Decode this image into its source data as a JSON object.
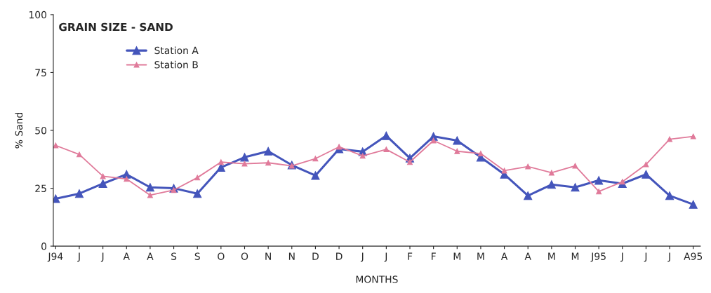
{
  "chart_data": {
    "type": "line",
    "title": "GRAIN SIZE - SAND",
    "xlabel": "MONTHS",
    "ylabel": "% Sand",
    "categories": [
      "J94",
      "J",
      "J",
      "A",
      "A",
      "S",
      "S",
      "O",
      "O",
      "N",
      "N",
      "D",
      "D",
      "J",
      "J",
      "F",
      "F",
      "M",
      "M",
      "A",
      "A",
      "M",
      "M",
      "J95",
      "J",
      "J",
      "J",
      "A95"
    ],
    "series": [
      {
        "name": "Station A",
        "color": "#4455bb",
        "values": [
          20.5,
          22.7,
          27,
          31,
          25.4,
          25,
          22.7,
          34,
          38.4,
          41,
          35,
          30.5,
          42,
          40.8,
          47.7,
          38,
          47.4,
          45.6,
          38.4,
          31,
          21.8,
          26.6,
          25.4,
          28.4,
          27,
          31,
          21.8,
          18
        ]
      },
      {
        "name": "Station B",
        "color": "#e07a9a",
        "values": [
          43.5,
          39.6,
          30.2,
          29,
          22,
          24.2,
          29.6,
          36.3,
          35.6,
          36,
          34.7,
          37.8,
          42.9,
          39,
          41.8,
          36.3,
          45.6,
          41,
          40,
          32.6,
          34.4,
          31.7,
          34.7,
          23.6,
          27.8,
          35.3,
          46.2,
          47.4
        ]
      }
    ],
    "ylim": [
      0,
      100
    ],
    "yticks": [
      0,
      25,
      50,
      75,
      100
    ],
    "grid": false,
    "legend": "top left",
    "marker": "triangle",
    "line_style": "solid"
  }
}
